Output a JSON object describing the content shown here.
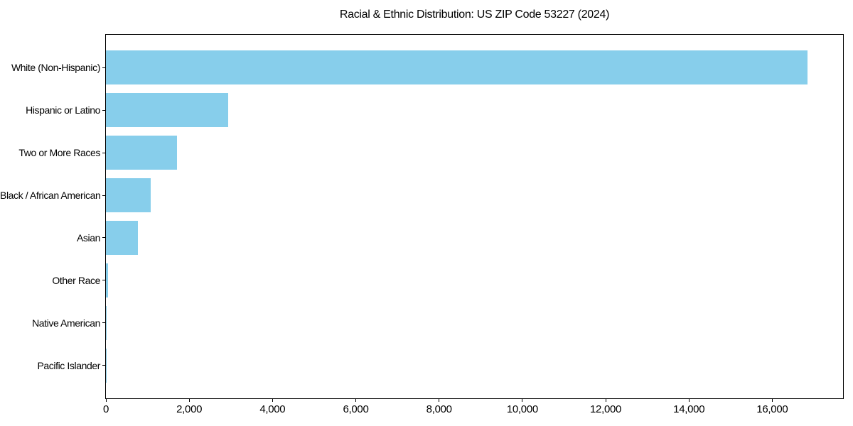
{
  "chart_data": {
    "type": "bar",
    "orientation": "horizontal",
    "title": "Racial & Ethnic Distribution: US ZIP Code 53227 (2024)",
    "xlabel": "",
    "ylabel": "",
    "categories": [
      "White (Non-Hispanic)",
      "Hispanic or Latino",
      "Two or More Races",
      "Black / African American",
      "Asian",
      "Other Race",
      "Native American",
      "Pacific Islander"
    ],
    "values": [
      16840,
      2930,
      1700,
      1080,
      760,
      55,
      17,
      3
    ],
    "bar_color": "#87CEEB",
    "xlim": [
      0,
      17700
    ],
    "xticks": [
      0,
      2000,
      4000,
      6000,
      8000,
      10000,
      12000,
      14000,
      16000
    ],
    "xtick_labels": [
      "0",
      "2,000",
      "4,000",
      "6,000",
      "8,000",
      "10,000",
      "12,000",
      "14,000",
      "16,000"
    ],
    "grid": false,
    "legend": null,
    "background_color": "#ffffff",
    "spine_color": "#000000"
  }
}
